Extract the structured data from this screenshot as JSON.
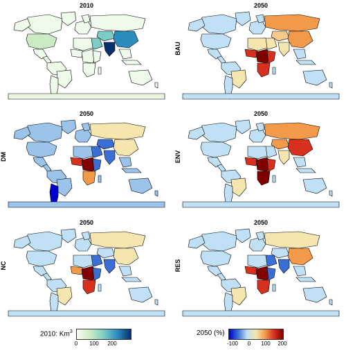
{
  "panels": [
    {
      "title": "2010",
      "side_label": "",
      "scheme": "base"
    },
    {
      "title": "2050",
      "side_label": "BAU",
      "scheme": "bau"
    },
    {
      "title": "2050",
      "side_label": "DM",
      "scheme": "dm"
    },
    {
      "title": "2050",
      "side_label": "ENV",
      "scheme": "env"
    },
    {
      "title": "2050",
      "side_label": "NC",
      "scheme": "nc"
    },
    {
      "title": "2050",
      "side_label": "RES",
      "scheme": "res"
    }
  ],
  "legend_left": {
    "title": "2010: Km",
    "superscript": "3",
    "ticks": [
      "0",
      "100",
      "200"
    ],
    "colors": [
      "#f7fcf0",
      "#ccebc5",
      "#7bccc4",
      "#2b8cbe",
      "#08306b"
    ]
  },
  "legend_right": {
    "title": "2050 (%)",
    "ticks": [
      "-100",
      "0",
      "100",
      "200"
    ],
    "colors": [
      "#0000cc",
      "#3b6fd6",
      "#bfe0f5",
      "#f5e6b0",
      "#f39a4a",
      "#d7301f",
      "#800000"
    ]
  }
}
